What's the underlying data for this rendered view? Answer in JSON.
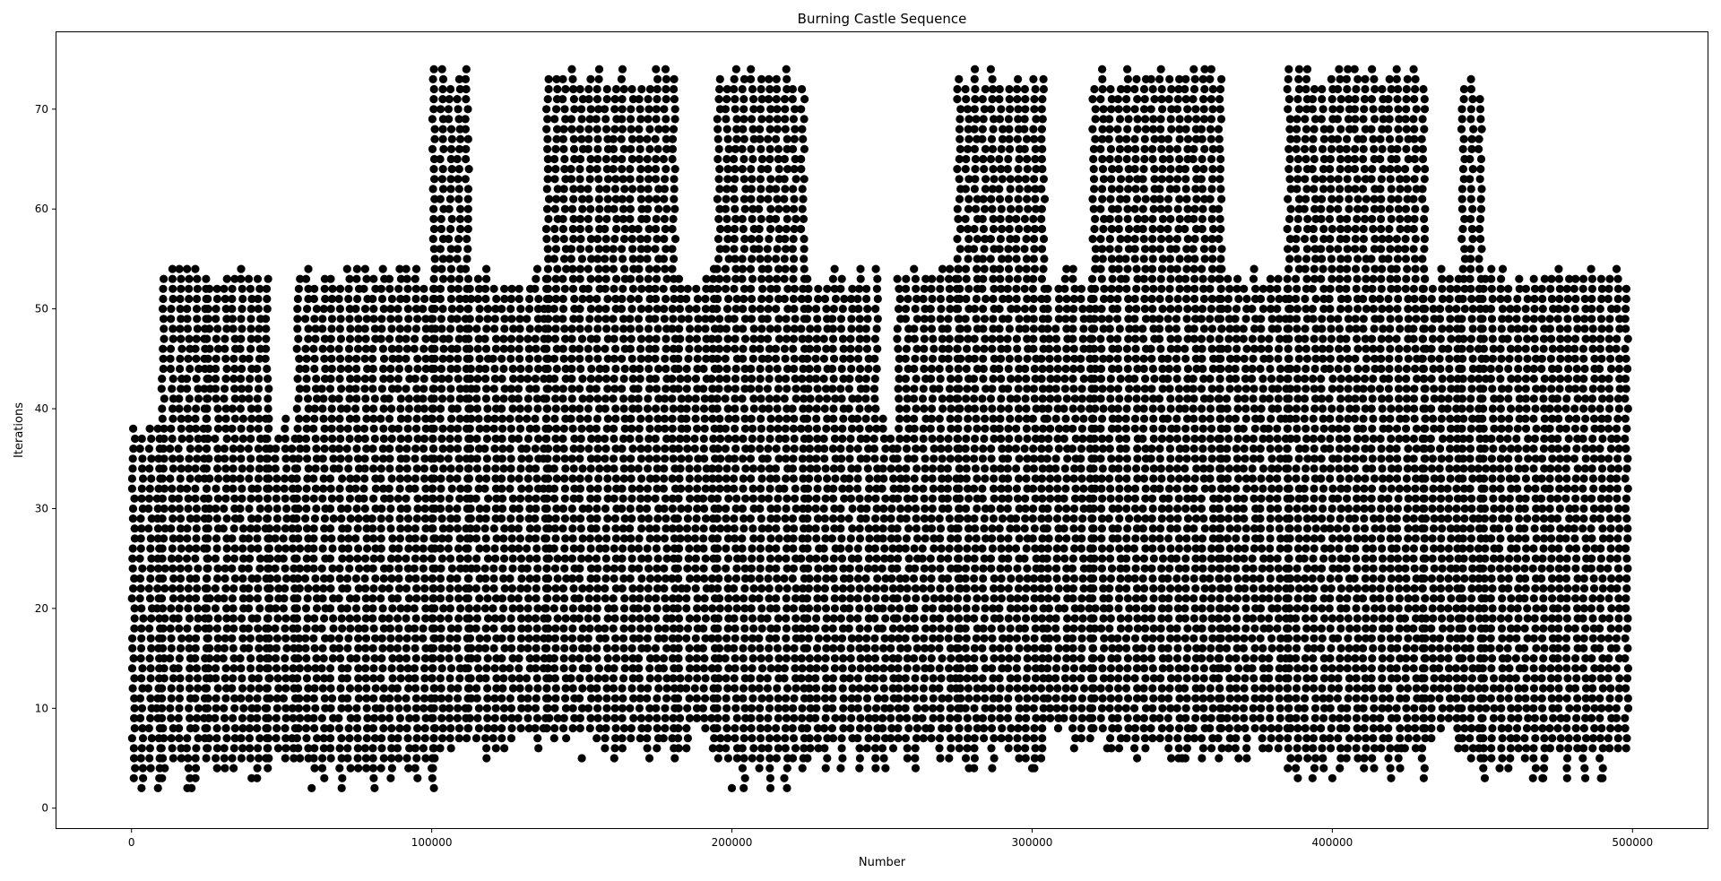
{
  "chart_data": {
    "type": "scatter",
    "title": "Burning Castle Sequence",
    "xlabel": "Number",
    "ylabel": "Iterations",
    "xlim": [
      -25000,
      525000
    ],
    "ylim": [
      -2,
      77.7
    ],
    "xticks": [
      0,
      100000,
      200000,
      300000,
      400000,
      500000
    ],
    "yticks": [
      0,
      10,
      20,
      30,
      40,
      50,
      60,
      70
    ],
    "grid": false,
    "legend": "none",
    "marker_color": "#000000",
    "x_range": [
      1,
      500000
    ],
    "y_range": [
      2,
      74
    ],
    "series": [
      {
        "x_segments": [
          {
            "x_start": 0,
            "x_end": 10000,
            "y_min": 2,
            "y_max": 39
          },
          {
            "x_start": 10000,
            "x_end": 25000,
            "y_min": 2,
            "y_max": 54
          },
          {
            "x_start": 25000,
            "x_end": 45000,
            "y_min": 3,
            "y_max": 54
          },
          {
            "x_start": 45000,
            "x_end": 55000,
            "y_min": 3,
            "y_max": 39
          },
          {
            "x_start": 55000,
            "x_end": 100000,
            "y_min": 2,
            "y_max": 54
          },
          {
            "x_start": 100000,
            "x_end": 112000,
            "y_min": 4,
            "y_max": 74
          },
          {
            "x_start": 112000,
            "x_end": 138000,
            "y_min": 5,
            "y_max": 54
          },
          {
            "x_start": 138000,
            "x_end": 182000,
            "y_min": 5,
            "y_max": 74
          },
          {
            "x_start": 182000,
            "x_end": 195000,
            "y_min": 6,
            "y_max": 54
          },
          {
            "x_start": 195000,
            "x_end": 225000,
            "y_min": 2,
            "y_max": 74
          },
          {
            "x_start": 225000,
            "x_end": 250000,
            "y_min": 4,
            "y_max": 54
          },
          {
            "x_start": 250000,
            "x_end": 255000,
            "y_min": 3,
            "y_max": 39
          },
          {
            "x_start": 255000,
            "x_end": 275000,
            "y_min": 4,
            "y_max": 54
          },
          {
            "x_start": 275000,
            "x_end": 305000,
            "y_min": 4,
            "y_max": 74
          },
          {
            "x_start": 305000,
            "x_end": 320000,
            "y_min": 6,
            "y_max": 54
          },
          {
            "x_start": 320000,
            "x_end": 362000,
            "y_min": 5,
            "y_max": 74
          },
          {
            "x_start": 362000,
            "x_end": 385000,
            "y_min": 5,
            "y_max": 54
          },
          {
            "x_start": 385000,
            "x_end": 430000,
            "y_min": 3,
            "y_max": 74
          },
          {
            "x_start": 430000,
            "x_end": 443000,
            "y_min": 6,
            "y_max": 54
          },
          {
            "x_start": 443000,
            "x_end": 450000,
            "y_min": 5,
            "y_max": 73
          },
          {
            "x_start": 450000,
            "x_end": 475000,
            "y_min": 3,
            "y_max": 54
          },
          {
            "x_start": 475000,
            "x_end": 500000,
            "y_min": 3,
            "y_max": 54
          }
        ],
        "outlier_points": [
          {
            "x": 20000,
            "y": 2
          },
          {
            "x": 60000,
            "y": 2
          },
          {
            "x": 200000,
            "y": 2
          },
          {
            "x": 150000,
            "y": 5
          },
          {
            "x": 300000,
            "y": 4
          },
          {
            "x": 350000,
            "y": 5
          },
          {
            "x": 400000,
            "y": 3
          },
          {
            "x": 40000,
            "y": 3
          },
          {
            "x": 100000,
            "y": 4
          },
          {
            "x": 470000,
            "y": 3
          },
          {
            "x": 490000,
            "y": 3
          },
          {
            "x": 423000,
            "y": 6
          },
          {
            "x": 325000,
            "y": 6
          },
          {
            "x": 175000,
            "y": 6
          }
        ]
      }
    ]
  }
}
